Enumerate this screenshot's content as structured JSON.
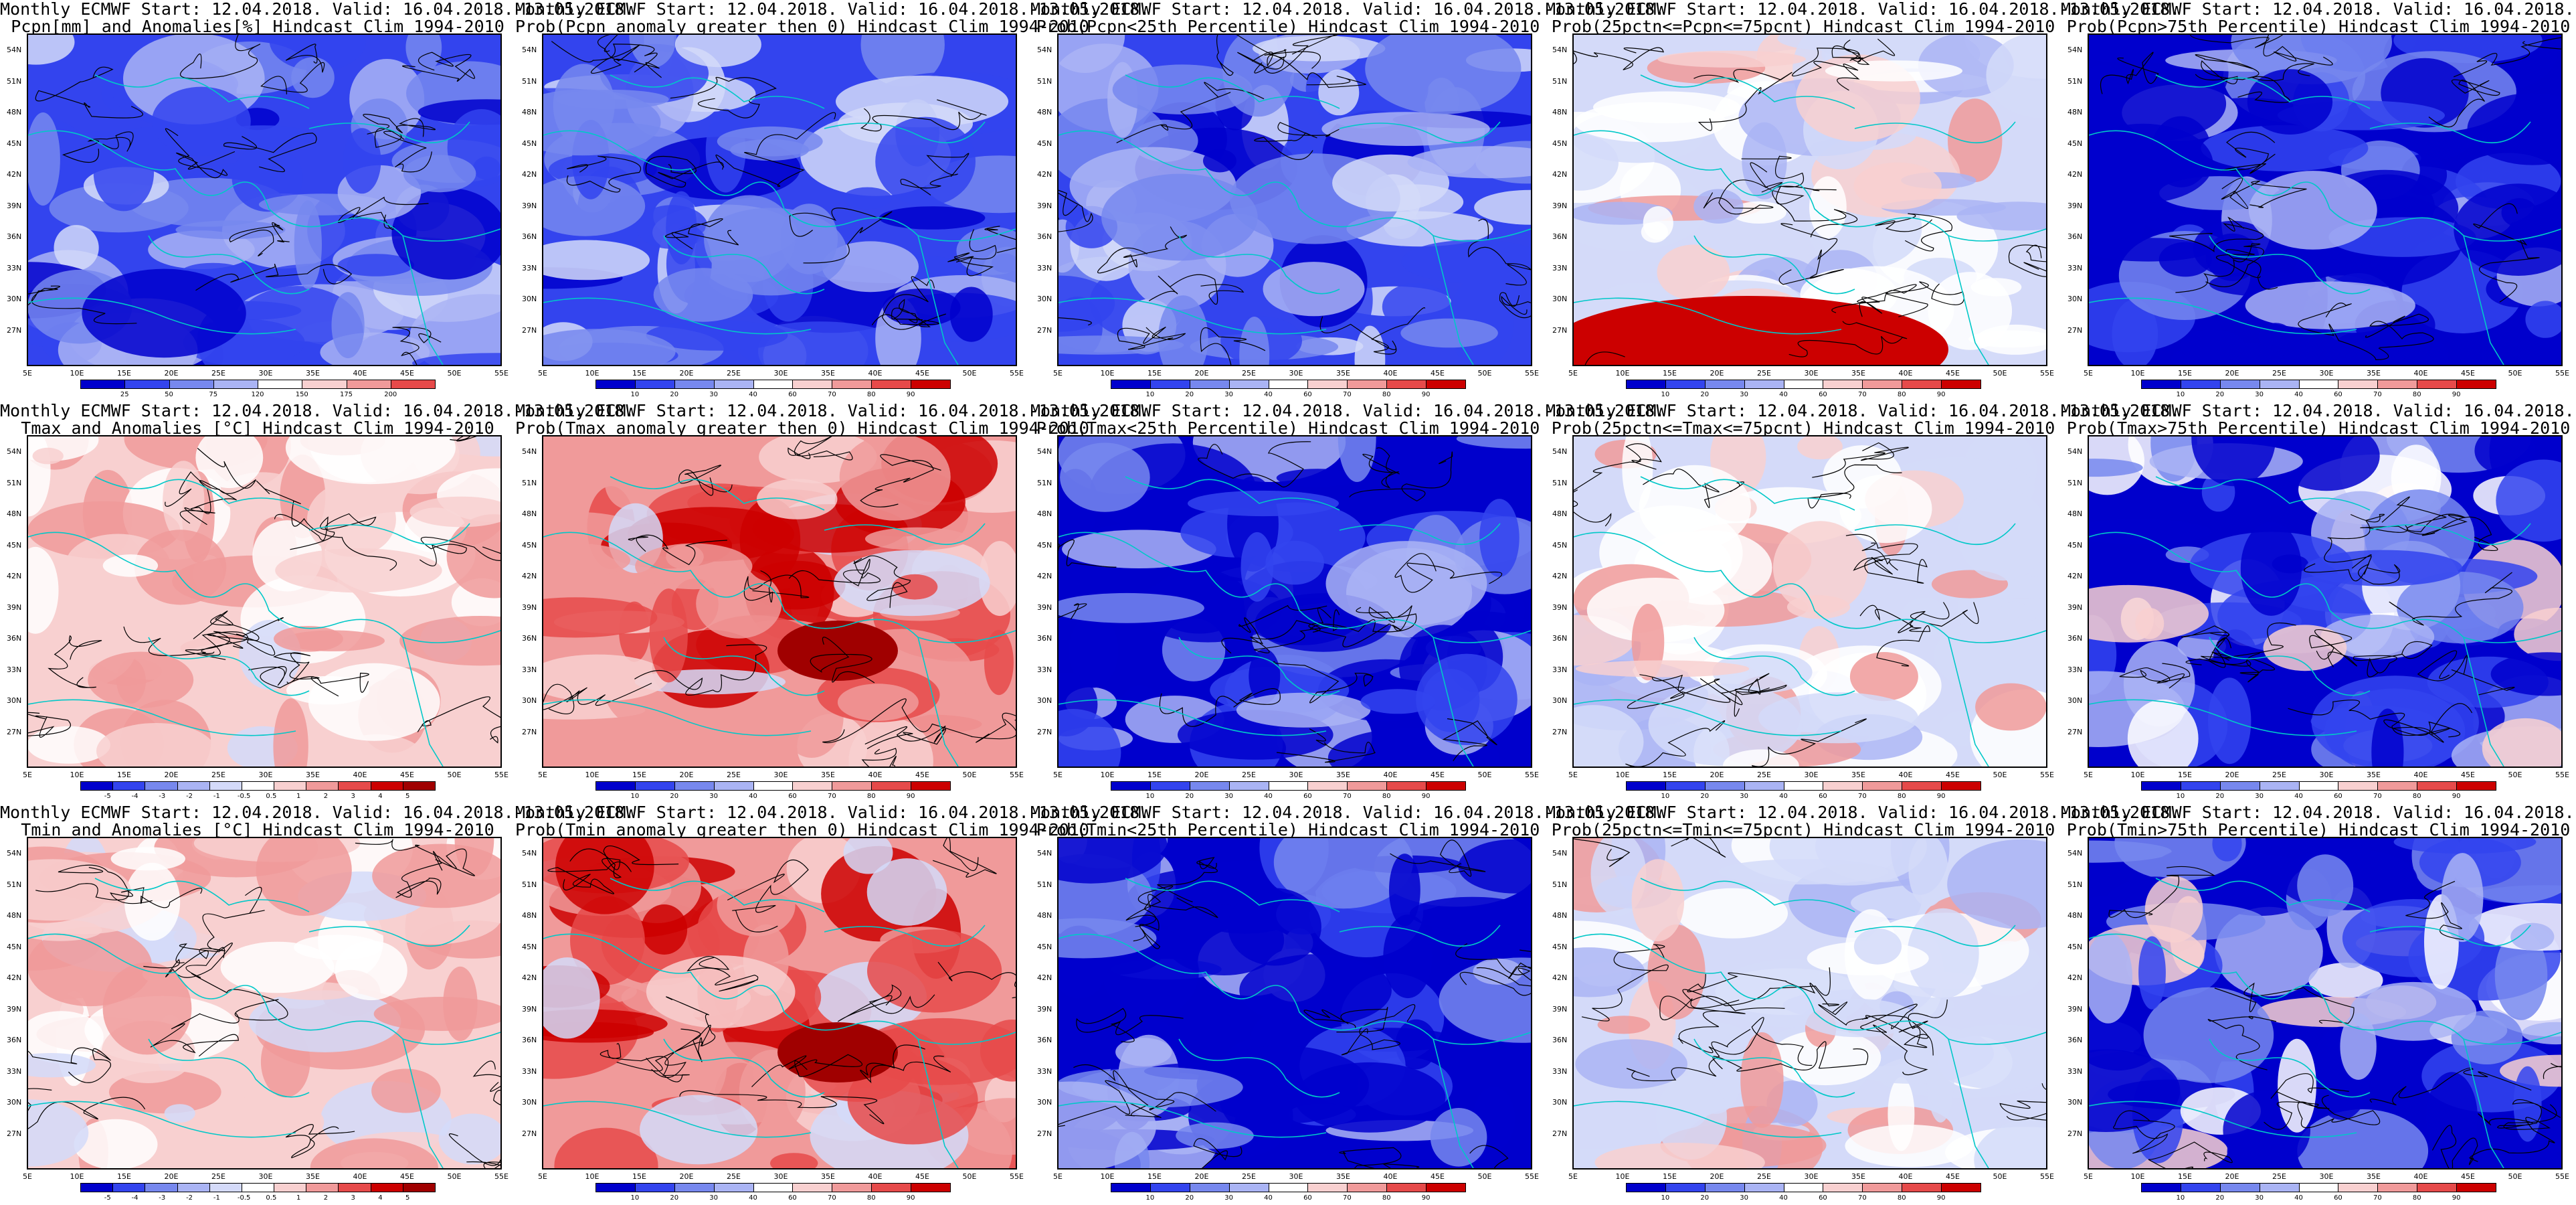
{
  "model_line": "Monthly ECMWF Start: 12.04.2018. Valid: 16.04.2018.-13.05.2018.",
  "lat_labels": [
    "54N",
    "51N",
    "48N",
    "45N",
    "42N",
    "39N",
    "36N",
    "33N",
    "30N",
    "27N"
  ],
  "lon_labels": [
    "5E",
    "10E",
    "15E",
    "20E",
    "25E",
    "30E",
    "35E",
    "40E",
    "45E",
    "50E",
    "55E"
  ],
  "colors": {
    "deep_blue": "#0000cc",
    "blue": "#3344ee",
    "mid_blue": "#7788ee",
    "light_blue": "#aab4f4",
    "pale_blue": "#d4daf9",
    "white": "#ffffff",
    "pale_red": "#f8d0d0",
    "light_red": "#f09a9a",
    "red": "#e64a4a",
    "deep_red": "#cc0000",
    "dark_red": "#a00000",
    "coast": "#00c8c8",
    "contour": "#000000"
  },
  "panels": [
    {
      "row": 0,
      "col": 0,
      "subtitle": "Pcpn[mm] and Anomalies[%] Hindcast Clim 1994-2010",
      "scale": "anom_pct",
      "fill": "blue_dominant"
    },
    {
      "row": 0,
      "col": 1,
      "subtitle": "Prob(Pcpn anomaly greater then 0) Hindcast Clim 1994-2010",
      "scale": "prob",
      "fill": "blue_dominant"
    },
    {
      "row": 0,
      "col": 2,
      "subtitle": "Prob(Pcpn<25th Percentile) Hindcast Clim 1994-2010",
      "scale": "prob",
      "fill": "blue_dominant"
    },
    {
      "row": 0,
      "col": 3,
      "subtitle": "Prob(25pctn<=Pcpn<=75pcnt) Hindcast Clim 1994-2010",
      "scale": "prob",
      "fill": "mixed_red_south"
    },
    {
      "row": 0,
      "col": 4,
      "subtitle": "Prob(Pcpn>75th Percentile) Hindcast Clim 1994-2010",
      "scale": "prob",
      "fill": "deep_blue"
    },
    {
      "row": 1,
      "col": 0,
      "subtitle": "Tmax and Anomalies [°C] Hindcast Clim 1994-2010",
      "scale": "anom_c",
      "fill": "red_north"
    },
    {
      "row": 1,
      "col": 1,
      "subtitle": "Prob(Tmax anomaly greater then 0) Hindcast Clim 1994-2010",
      "scale": "prob",
      "fill": "red_dominant"
    },
    {
      "row": 1,
      "col": 2,
      "subtitle": "Prob(Tmax<25th Percentile) Hindcast Clim 1994-2010",
      "scale": "prob",
      "fill": "deep_blue"
    },
    {
      "row": 1,
      "col": 3,
      "subtitle": "Prob(25pctn<=Tmax<=75pcnt) Hindcast Clim 1994-2010",
      "scale": "prob",
      "fill": "mixed"
    },
    {
      "row": 1,
      "col": 4,
      "subtitle": "Prob(Tmax>75th Percentile) Hindcast Clim 1994-2010",
      "scale": "prob",
      "fill": "blue_mixed"
    },
    {
      "row": 2,
      "col": 0,
      "subtitle": "Tmin and Anomalies [°C] Hindcast Clim 1994-2010",
      "scale": "anom_c",
      "fill": "red_north"
    },
    {
      "row": 2,
      "col": 1,
      "subtitle": "Prob(Tmin anomaly greater then 0) Hindcast Clim 1994-2010",
      "scale": "prob",
      "fill": "red_dominant"
    },
    {
      "row": 2,
      "col": 2,
      "subtitle": "Prob(Tmin<25th Percentile) Hindcast Clim 1994-2010",
      "scale": "prob",
      "fill": "deep_blue"
    },
    {
      "row": 2,
      "col": 3,
      "subtitle": "Prob(25pctn<=Tmin<=75pcnt) Hindcast Clim 1994-2010",
      "scale": "prob",
      "fill": "mixed"
    },
    {
      "row": 2,
      "col": 4,
      "subtitle": "Prob(Tmin>75th Percentile) Hindcast Clim 1994-2010",
      "scale": "prob",
      "fill": "blue_mixed"
    }
  ],
  "colorbars": {
    "anom_pct": {
      "ticks": [
        "25",
        "50",
        "75",
        "120",
        "150",
        "175",
        "200"
      ]
    },
    "anom_c": {
      "ticks": [
        "-5",
        "-4",
        "-3",
        "-2",
        "-1",
        "-0.5",
        "0.5",
        "1",
        "2",
        "3",
        "4",
        "5"
      ]
    },
    "prob": {
      "ticks": [
        "10",
        "20",
        "30",
        "40",
        "60",
        "70",
        "80",
        "90"
      ]
    }
  }
}
